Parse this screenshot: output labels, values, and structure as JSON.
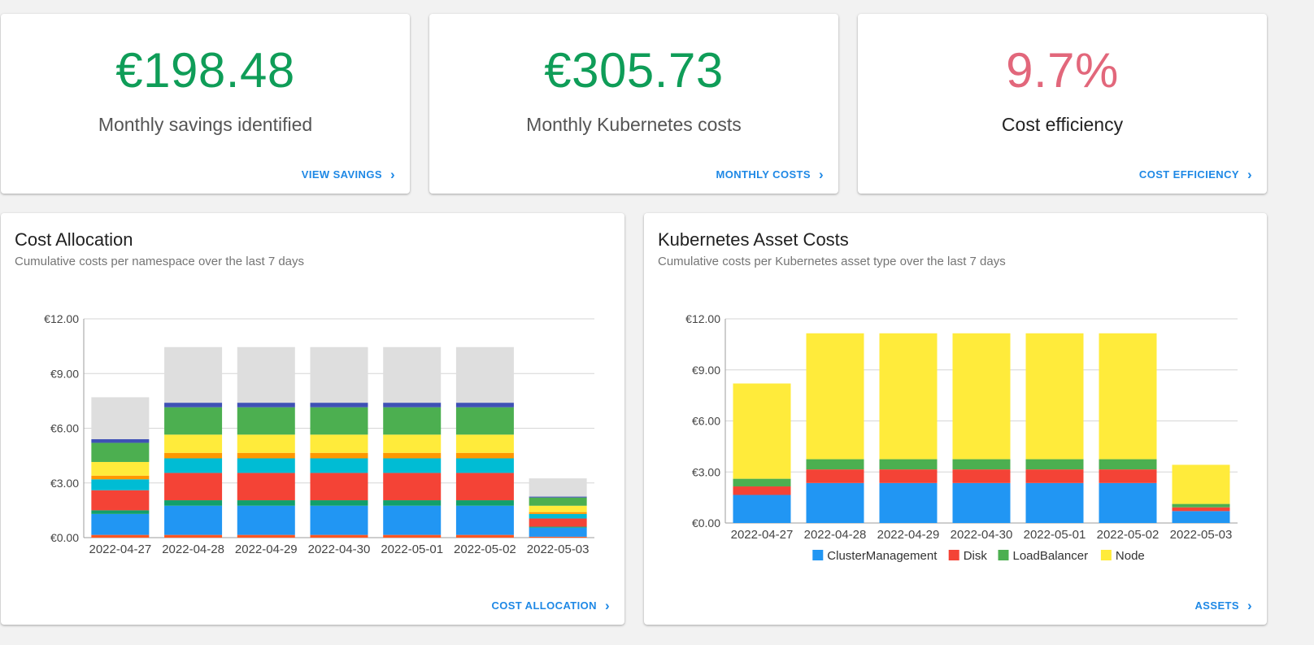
{
  "kpis": {
    "savings": {
      "value": "€198.48",
      "label": "Monthly savings identified",
      "link": "VIEW SAVINGS"
    },
    "costs": {
      "value": "€305.73",
      "label": "Monthly Kubernetes costs",
      "link": "MONTHLY COSTS"
    },
    "efficiency": {
      "value": "9.7%",
      "label": "Cost efficiency",
      "link": "COST EFFICIENCY"
    }
  },
  "colors": {
    "positive": "#0f9d58",
    "negative": "#e2677b",
    "link": "#1e88e5"
  },
  "icons": {
    "link_chevron": "chevron-right-icon"
  },
  "allocation": {
    "title": "Cost Allocation",
    "subtitle": "Cumulative costs per namespace over the last 7 days",
    "link": "COST ALLOCATION"
  },
  "assets": {
    "title": "Kubernetes Asset Costs",
    "subtitle": "Cumulative costs per Kubernetes asset type over the last 7 days",
    "link": "ASSETS"
  },
  "chart_data": [
    {
      "type": "bar",
      "stacked": true,
      "title": "Cost Allocation",
      "subtitle": "Cumulative costs per namespace over the last 7 days",
      "categories": [
        "2022-04-27",
        "2022-04-28",
        "2022-04-29",
        "2022-04-30",
        "2022-05-01",
        "2022-05-02",
        "2022-05-03"
      ],
      "ylim": [
        0,
        12
      ],
      "yticks": [
        "€0.00",
        "€3.00",
        "€6.00",
        "€9.00",
        "€12.00"
      ],
      "ytick_values": [
        0,
        3,
        6,
        9,
        12
      ],
      "grid": true,
      "legend": false,
      "series": [
        {
          "color": "#ff5722",
          "values": [
            0.15,
            0.15,
            0.15,
            0.15,
            0.15,
            0.15,
            0.05
          ]
        },
        {
          "color": "#2196f3",
          "values": [
            1.15,
            1.6,
            1.6,
            1.6,
            1.6,
            1.6,
            0.5
          ]
        },
        {
          "color": "#129f6b",
          "values": [
            0.2,
            0.3,
            0.3,
            0.3,
            0.3,
            0.3,
            0.05
          ]
        },
        {
          "color": "#f44336",
          "values": [
            1.1,
            1.5,
            1.5,
            1.5,
            1.5,
            1.5,
            0.45
          ]
        },
        {
          "color": "#00bcd4",
          "values": [
            0.6,
            0.8,
            0.8,
            0.8,
            0.8,
            0.8,
            0.25
          ]
        },
        {
          "color": "#ff9800",
          "values": [
            0.2,
            0.3,
            0.3,
            0.3,
            0.3,
            0.3,
            0.1
          ]
        },
        {
          "color": "#ffeb3b",
          "values": [
            0.75,
            1.0,
            1.0,
            1.0,
            1.0,
            1.0,
            0.35
          ]
        },
        {
          "color": "#4caf50",
          "values": [
            1.05,
            1.5,
            1.5,
            1.5,
            1.5,
            1.5,
            0.45
          ]
        },
        {
          "color": "#3f51b5",
          "values": [
            0.2,
            0.25,
            0.25,
            0.25,
            0.25,
            0.25,
            0.05
          ]
        },
        {
          "color": "#dedede",
          "values": [
            2.3,
            3.05,
            3.05,
            3.05,
            3.05,
            3.05,
            1.0
          ]
        }
      ]
    },
    {
      "type": "bar",
      "stacked": true,
      "title": "Kubernetes Asset Costs",
      "subtitle": "Cumulative costs per Kubernetes asset type over the last 7 days",
      "categories": [
        "2022-04-27",
        "2022-04-28",
        "2022-04-29",
        "2022-04-30",
        "2022-05-01",
        "2022-05-02",
        "2022-05-03"
      ],
      "ylim": [
        0,
        12
      ],
      "yticks": [
        "€0.00",
        "€3.00",
        "€6.00",
        "€9.00",
        "€12.00"
      ],
      "ytick_values": [
        0,
        3,
        6,
        9,
        12
      ],
      "grid": true,
      "legend": "bottom",
      "series": [
        {
          "name": "ClusterManagement",
          "color": "#2196f3",
          "values": [
            1.65,
            2.35,
            2.35,
            2.35,
            2.35,
            2.35,
            0.7
          ]
        },
        {
          "name": "Disk",
          "color": "#f44336",
          "values": [
            0.5,
            0.8,
            0.8,
            0.8,
            0.8,
            0.8,
            0.22
          ]
        },
        {
          "name": "LoadBalancer",
          "color": "#4caf50",
          "values": [
            0.45,
            0.6,
            0.6,
            0.6,
            0.6,
            0.6,
            0.2
          ]
        },
        {
          "name": "Node",
          "color": "#ffeb3b",
          "values": [
            5.6,
            7.4,
            7.4,
            7.4,
            7.4,
            7.4,
            2.3
          ]
        }
      ]
    }
  ]
}
